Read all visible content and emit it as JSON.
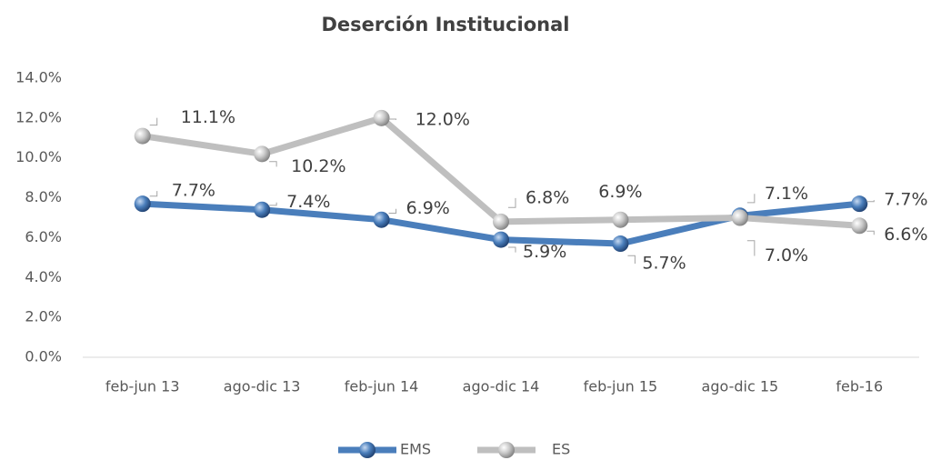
{
  "chart_data": {
    "type": "line",
    "title": "Deserción Institucional",
    "categories": [
      "feb-jun 13",
      "ago-dic 13",
      "feb-jun 14",
      "ago-dic 14",
      "feb-jun 15",
      "ago-dic 15",
      "feb-16"
    ],
    "series": [
      {
        "name": "EMS",
        "color": "#4a7ebb",
        "values": [
          7.7,
          7.4,
          6.9,
          5.9,
          5.7,
          7.1,
          7.7
        ],
        "value_labels": [
          "7.7%",
          "7.4%",
          "6.9%",
          "5.9%",
          "5.7%",
          "7.1%",
          "7.7%"
        ]
      },
      {
        "name": "ES",
        "color": "#bfbfbf",
        "values": [
          11.1,
          10.2,
          12.0,
          6.8,
          6.9,
          7.0,
          6.6
        ],
        "value_labels": [
          "11.1%",
          "10.2%",
          "12.0%",
          "6.8%",
          "6.9%",
          "7.0%",
          "6.6%"
        ]
      }
    ],
    "ylim": [
      0,
      14
    ],
    "yticks": [
      {
        "value": 0,
        "label": "0.0%"
      },
      {
        "value": 2,
        "label": "2.0%"
      },
      {
        "value": 4,
        "label": "4.0%"
      },
      {
        "value": 6,
        "label": "6.0%"
      },
      {
        "value": 8,
        "label": "8.0%"
      },
      {
        "value": 10,
        "label": "10.0%"
      },
      {
        "value": 12,
        "label": "12.0%"
      },
      {
        "value": 14,
        "label": "14.0%"
      }
    ],
    "grid": false,
    "legend": "bottom"
  }
}
